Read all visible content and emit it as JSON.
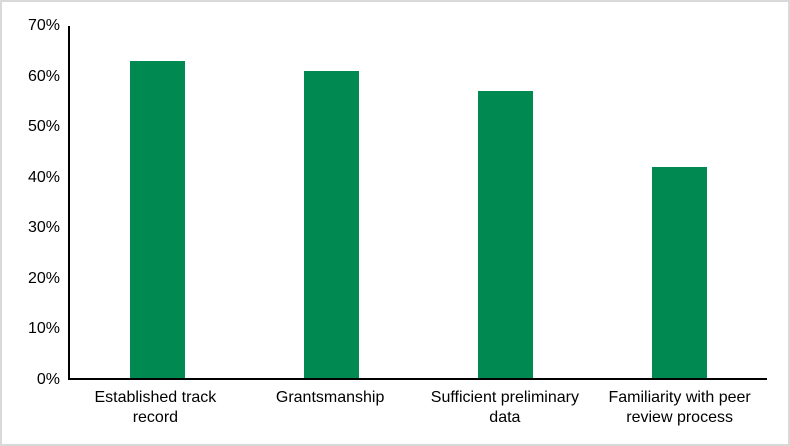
{
  "chart_data": {
    "type": "bar",
    "title": "",
    "xlabel": "",
    "ylabel": "",
    "categories": [
      "Established track record",
      "Grantsmanship",
      "Sufficient preliminary data",
      "Familiarity with peer review process"
    ],
    "values": [
      63,
      61,
      57,
      42
    ],
    "value_unit": "%",
    "ylim": [
      0,
      70
    ],
    "ytick_step": 10,
    "ytick_labels": [
      "0%",
      "10%",
      "20%",
      "30%",
      "40%",
      "50%",
      "60%",
      "70%"
    ],
    "grid": false,
    "legend_position": "none",
    "bar_color": "#008a52",
    "axis_color": "#000000",
    "frame_border_color": "#d9d9d9",
    "background_color": "#ffffff"
  }
}
